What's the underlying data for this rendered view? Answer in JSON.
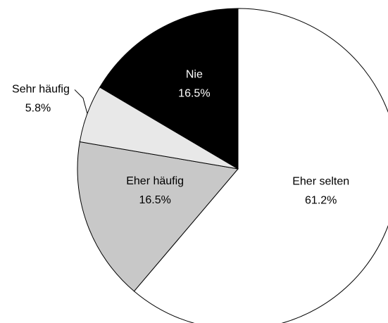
{
  "chart_data": {
    "type": "pie",
    "categories": [
      "Eher selten",
      "Eher häufig",
      "Sehr häufig",
      "Nie"
    ],
    "values": [
      61.2,
      16.5,
      5.8,
      16.5
    ],
    "value_labels": [
      "61.2%",
      "16.5%",
      "5.8%",
      "16.5%"
    ],
    "colors": [
      "#ffffff",
      "#c8c8c8",
      "#e8e8e8",
      "#000000"
    ]
  }
}
